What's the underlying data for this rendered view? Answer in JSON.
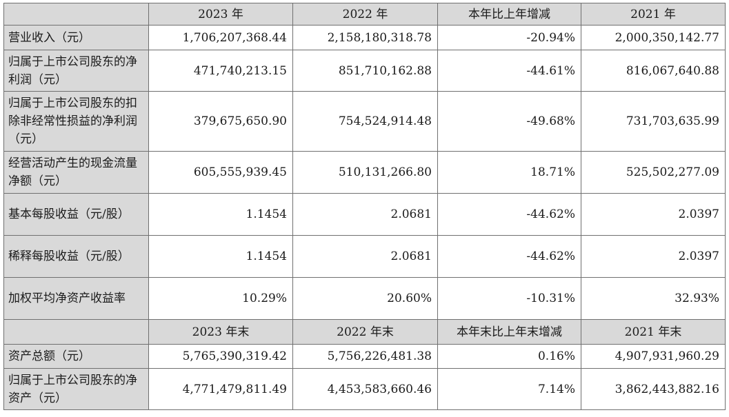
{
  "header1": [
    "2023 年",
    "2022 年",
    "本年比上年增减",
    "2021 年"
  ],
  "rows1": [
    {
      "label": "营业收入（元）",
      "values": [
        "1,706,207,368.44",
        "2,158,180,318.78",
        "-20.94%",
        "2,000,350,142.77"
      ]
    },
    {
      "label": "归属于上市公司股东的净利润（元）",
      "values": [
        "471,740,213.15",
        "851,710,162.88",
        "-44.61%",
        "816,067,640.88"
      ]
    },
    {
      "label": "归属于上市公司股东的扣除非经常性损益的净利润（元）",
      "values": [
        "379,675,650.90",
        "754,524,914.48",
        "-49.68%",
        "731,703,635.99"
      ]
    },
    {
      "label": "经营活动产生的现金流量净额（元）",
      "values": [
        "605,555,939.45",
        "510,131,266.80",
        "18.71%",
        "525,502,277.09"
      ]
    },
    {
      "label": "基本每股收益（元/股）",
      "values": [
        "1.1454",
        "2.0681",
        "-44.62%",
        "2.0397"
      ]
    },
    {
      "label": "稀释每股收益（元/股）",
      "values": [
        "1.1454",
        "2.0681",
        "-44.62%",
        "2.0397"
      ]
    },
    {
      "label": "加权平均净资产收益率",
      "values": [
        "10.29%",
        "20.60%",
        "-10.31%",
        "32.93%"
      ]
    }
  ],
  "header2": [
    "2023 年末",
    "2022 年末",
    "本年末比上年末增减",
    "2021 年末"
  ],
  "rows2": [
    {
      "label": "资产总额（元）",
      "values": [
        "5,765,390,319.42",
        "5,756,226,481.38",
        "0.16%",
        "4,907,931,960.29"
      ]
    },
    {
      "label": "归属于上市公司股东的净资产（元）",
      "values": [
        "4,771,479,811.49",
        "4,453,583,660.46",
        "7.14%",
        "3,862,443,882.16"
      ]
    }
  ]
}
